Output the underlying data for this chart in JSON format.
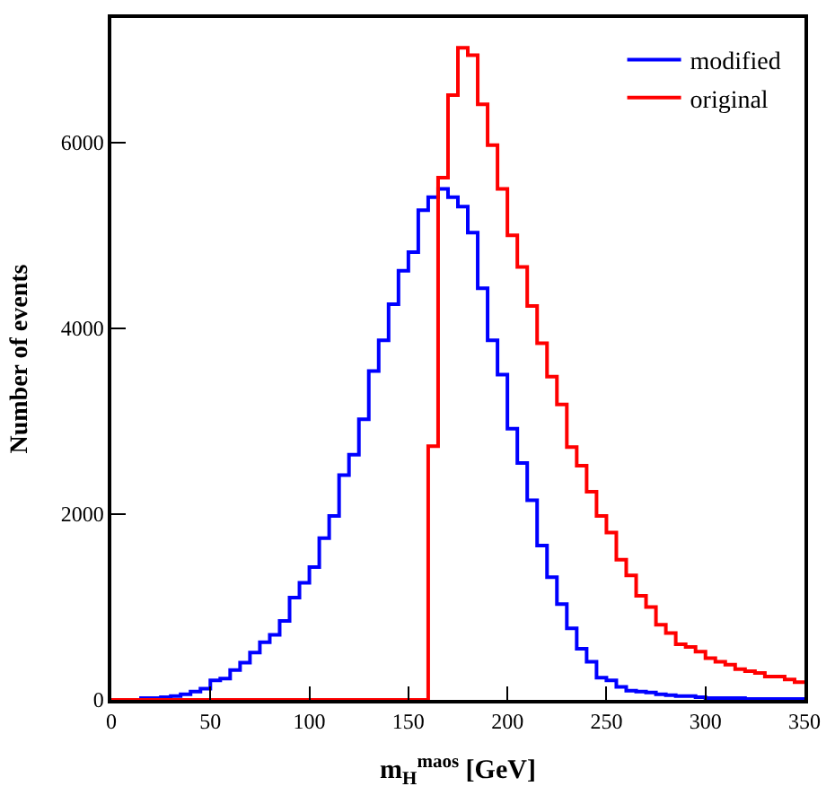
{
  "chart_data": {
    "type": "histogram",
    "xlabel": "m$_{H}$$^{maos}$ [GeV]",
    "ylabel": "Number of events",
    "bins": [
      0,
      5,
      10,
      15,
      20,
      25,
      30,
      35,
      40,
      45,
      50,
      55,
      60,
      65,
      70,
      75,
      80,
      85,
      90,
      95,
      100,
      105,
      110,
      115,
      120,
      125,
      130,
      135,
      140,
      145,
      150,
      155,
      160,
      165,
      170,
      175,
      180,
      185,
      190,
      195,
      200,
      205,
      210,
      215,
      220,
      225,
      230,
      235,
      240,
      245,
      250,
      255,
      260,
      265,
      270,
      275,
      280,
      285,
      290,
      295,
      300,
      305,
      310,
      315,
      320,
      325,
      330,
      335,
      340,
      345,
      350
    ],
    "series": [
      {
        "name": "modified",
        "color": "#0000ff",
        "values": [
          0,
          0,
          0,
          20,
          20,
          30,
          40,
          60,
          90,
          120,
          210,
          230,
          320,
          400,
          510,
          620,
          700,
          850,
          1100,
          1260,
          1430,
          1740,
          1980,
          2420,
          2640,
          3020,
          3540,
          3870,
          4260,
          4620,
          4820,
          5270,
          5410,
          5500,
          5410,
          5310,
          5030,
          4430,
          3870,
          3500,
          2920,
          2550,
          2150,
          1660,
          1320,
          1030,
          770,
          550,
          410,
          240,
          210,
          140,
          100,
          90,
          80,
          60,
          50,
          40,
          40,
          30,
          20,
          20,
          20,
          20,
          10,
          10,
          10,
          10,
          10,
          10
        ]
      },
      {
        "name": "original",
        "color": "#ff0000",
        "values": [
          0,
          0,
          0,
          0,
          0,
          0,
          0,
          0,
          0,
          0,
          0,
          0,
          0,
          0,
          0,
          0,
          0,
          0,
          0,
          0,
          0,
          0,
          0,
          0,
          0,
          0,
          0,
          0,
          0,
          0,
          0,
          0,
          2730,
          5620,
          6510,
          7020,
          6940,
          6410,
          5970,
          5500,
          5000,
          4660,
          4240,
          3840,
          3480,
          3180,
          2720,
          2520,
          2240,
          1980,
          1800,
          1510,
          1340,
          1120,
          1000,
          810,
          720,
          600,
          570,
          520,
          450,
          410,
          380,
          330,
          310,
          290,
          250,
          250,
          220,
          190
        ]
      }
    ],
    "xlim": [
      0,
      350
    ],
    "xticks": [
      0,
      50,
      100,
      150,
      200,
      250,
      300,
      350
    ],
    "ylim": [
      0,
      7340
    ],
    "yticks": [
      0,
      2000,
      4000,
      6000
    ],
    "legend": "top right",
    "line_style": "solid",
    "marker": "none"
  }
}
